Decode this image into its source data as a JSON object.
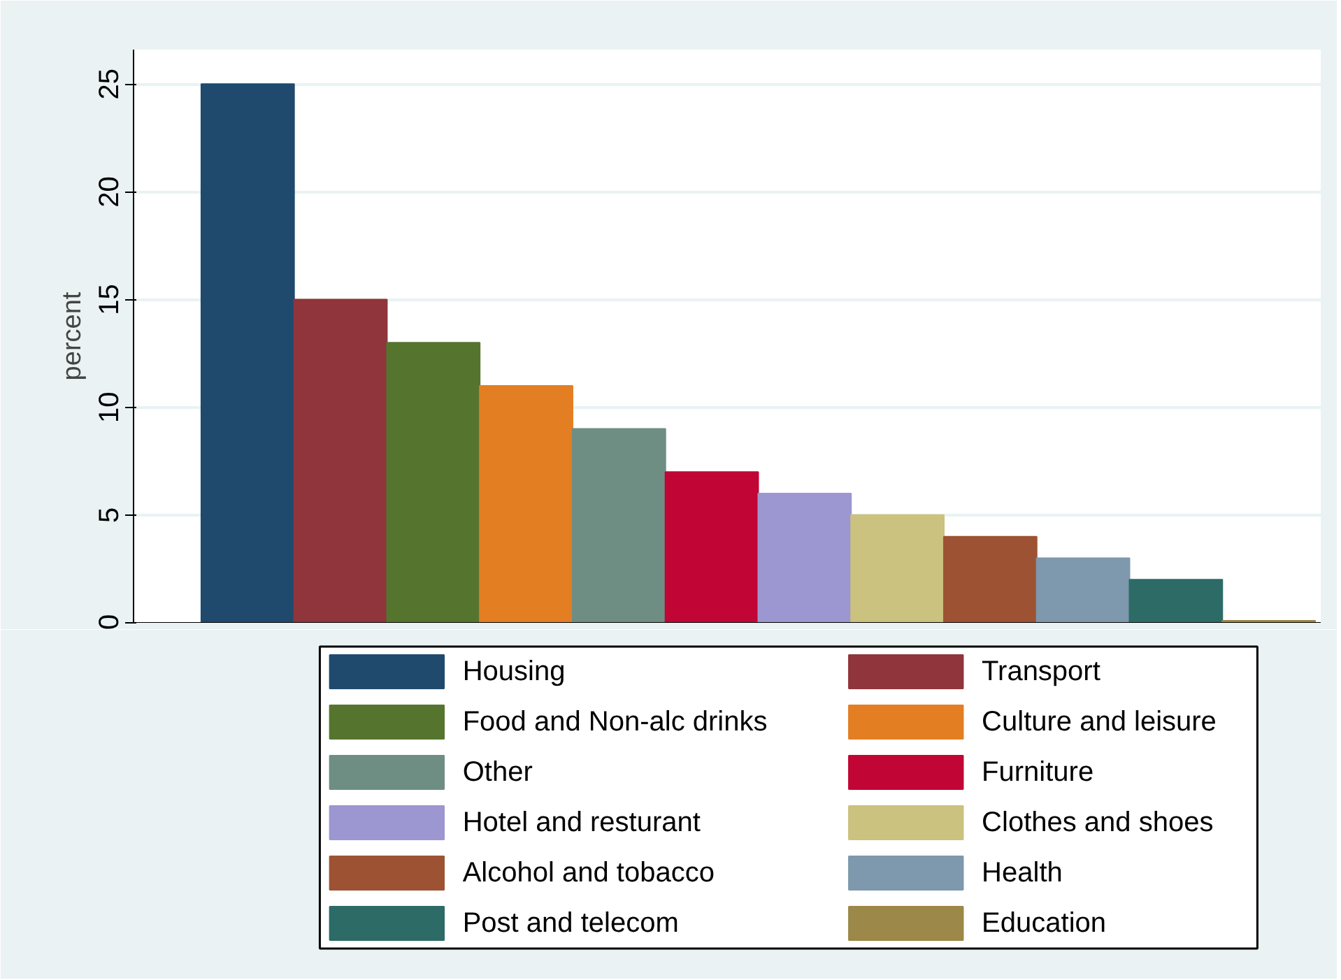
{
  "chart_data": {
    "type": "bar",
    "ylabel": "percent",
    "categories": [
      null
    ],
    "ylim": [
      0,
      26.6
    ],
    "yticks": [
      0,
      5,
      10,
      15,
      20,
      25
    ],
    "grid": "y",
    "legend": "bottom",
    "series": [
      {
        "name": "Housing",
        "color": "#1f4a6e",
        "values": [
          25
        ]
      },
      {
        "name": "Transport",
        "color": "#90353b",
        "values": [
          15
        ]
      },
      {
        "name": "Food and Non-alc drinks",
        "color": "#55752f",
        "values": [
          13
        ]
      },
      {
        "name": "Culture and leisure",
        "color": "#e37e22",
        "values": [
          11
        ]
      },
      {
        "name": "Other",
        "color": "#6e8e84",
        "values": [
          9
        ]
      },
      {
        "name": "Furniture",
        "color": "#c10534",
        "values": [
          7
        ]
      },
      {
        "name": "Hotel and resturant",
        "color": "#9c96d1",
        "values": [
          6
        ]
      },
      {
        "name": "Clothes and shoes",
        "color": "#cac27e",
        "values": [
          5
        ]
      },
      {
        "name": "Alcohol and tobacco",
        "color": "#9d5333",
        "values": [
          4
        ]
      },
      {
        "name": "Health",
        "color": "#7e98ad",
        "values": [
          3
        ]
      },
      {
        "name": "Post and telecom",
        "color": "#2d6b66",
        "values": [
          2
        ]
      },
      {
        "name": "Education",
        "color": "#9c8848",
        "values": [
          0.1
        ]
      }
    ]
  }
}
